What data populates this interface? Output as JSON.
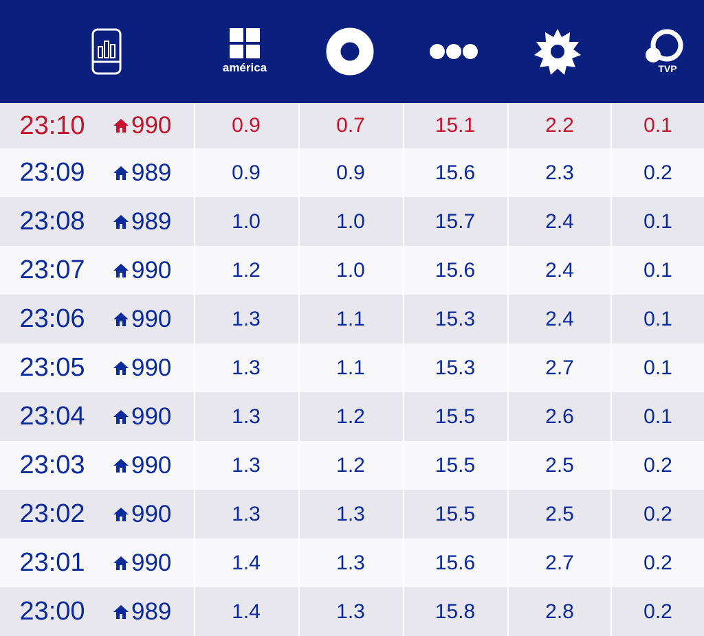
{
  "colors": {
    "header_bg": "#0a1f7e",
    "text": "#0b2a9c",
    "live": "#c4132d"
  },
  "header": {
    "icons": [
      "rating-device-icon",
      "america-logo-icon",
      "channel-ring-icon",
      "channel-dots-icon",
      "channel-sun-icon",
      "tvp-logo-icon"
    ],
    "america_label": "américa",
    "tvp_label": "TVP"
  },
  "rows": [
    {
      "time": "23:10",
      "total": "990",
      "v": [
        "0.9",
        "0.7",
        "15.1",
        "2.2",
        "0.1"
      ],
      "live": true
    },
    {
      "time": "23:09",
      "total": "989",
      "v": [
        "0.9",
        "0.9",
        "15.6",
        "2.3",
        "0.2"
      ]
    },
    {
      "time": "23:08",
      "total": "989",
      "v": [
        "1.0",
        "1.0",
        "15.7",
        "2.4",
        "0.1"
      ]
    },
    {
      "time": "23:07",
      "total": "990",
      "v": [
        "1.2",
        "1.0",
        "15.6",
        "2.4",
        "0.1"
      ]
    },
    {
      "time": "23:06",
      "total": "990",
      "v": [
        "1.3",
        "1.1",
        "15.3",
        "2.4",
        "0.1"
      ]
    },
    {
      "time": "23:05",
      "total": "990",
      "v": [
        "1.3",
        "1.1",
        "15.3",
        "2.7",
        "0.1"
      ]
    },
    {
      "time": "23:04",
      "total": "990",
      "v": [
        "1.3",
        "1.2",
        "15.5",
        "2.6",
        "0.1"
      ]
    },
    {
      "time": "23:03",
      "total": "990",
      "v": [
        "1.3",
        "1.2",
        "15.5",
        "2.5",
        "0.2"
      ]
    },
    {
      "time": "23:02",
      "total": "990",
      "v": [
        "1.3",
        "1.3",
        "15.5",
        "2.5",
        "0.2"
      ]
    },
    {
      "time": "23:01",
      "total": "990",
      "v": [
        "1.4",
        "1.3",
        "15.6",
        "2.7",
        "0.2"
      ]
    },
    {
      "time": "23:00",
      "total": "989",
      "v": [
        "1.4",
        "1.3",
        "15.8",
        "2.8",
        "0.2"
      ]
    }
  ]
}
